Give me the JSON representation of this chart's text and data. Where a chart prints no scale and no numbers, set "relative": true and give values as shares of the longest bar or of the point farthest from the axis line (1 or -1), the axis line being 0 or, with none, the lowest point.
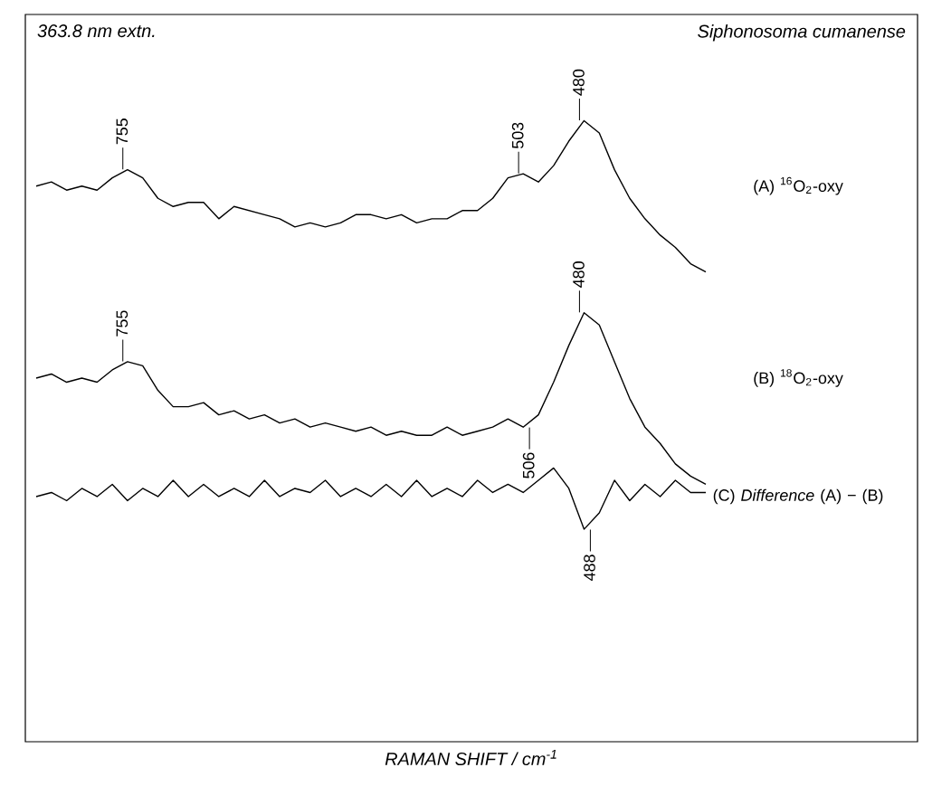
{
  "chart_data": {
    "type": "line",
    "relative": true,
    "categories": [
      null,
      null,
      null,
      null,
      null,
      null,
      null,
      null,
      null,
      null,
      null,
      null,
      null,
      null,
      null,
      null,
      null,
      null,
      null,
      null,
      null,
      null,
      null,
      null,
      null,
      null,
      null,
      null,
      null,
      null,
      null,
      null,
      null,
      null,
      null,
      null,
      null,
      null,
      null,
      null,
      null,
      null,
      null,
      null,
      null
    ],
    "tick_labels": false,
    "series": [
      {
        "name": "(A) $^{16}$O$_{2}$-oxy",
        "color": "#000000",
        "values": [
          0.84,
          0.85,
          0.83,
          0.84,
          0.83,
          0.86,
          0.88,
          0.86,
          0.81,
          0.79,
          0.8,
          0.8,
          0.76,
          0.79,
          0.78,
          0.77,
          0.76,
          0.74,
          0.75,
          0.74,
          0.75,
          0.77,
          0.77,
          0.76,
          0.77,
          0.75,
          0.76,
          0.76,
          0.78,
          0.78,
          0.81,
          0.86,
          0.87,
          0.85,
          0.89,
          0.95,
          1.0,
          0.97,
          0.88,
          0.81,
          0.76,
          0.72,
          0.69,
          0.65,
          0.63
        ]
      },
      {
        "name": "(B) $^{18}$O$_{2}$-oxy",
        "color": "#000000",
        "values": [
          0.37,
          0.38,
          0.36,
          0.37,
          0.36,
          0.39,
          0.41,
          0.4,
          0.34,
          0.3,
          0.3,
          0.31,
          0.28,
          0.29,
          0.27,
          0.28,
          0.26,
          0.27,
          0.25,
          0.26,
          0.25,
          0.24,
          0.25,
          0.23,
          0.24,
          0.23,
          0.23,
          0.25,
          0.23,
          0.24,
          0.25,
          0.27,
          0.25,
          0.28,
          0.36,
          0.45,
          0.53,
          0.5,
          0.41,
          0.32,
          0.25,
          0.21,
          0.16,
          0.13,
          0.11
        ]
      },
      {
        "name": "(C) *Difference* (A) − (B)",
        "color": "#000000",
        "values": [
          0.08,
          0.09,
          0.07,
          0.1,
          0.08,
          0.11,
          0.07,
          0.1,
          0.08,
          0.12,
          0.08,
          0.11,
          0.08,
          0.1,
          0.08,
          0.12,
          0.08,
          0.1,
          0.09,
          0.12,
          0.08,
          0.1,
          0.08,
          0.11,
          0.08,
          0.12,
          0.08,
          0.1,
          0.08,
          0.12,
          0.09,
          0.11,
          0.09,
          0.12,
          0.15,
          0.1,
          0,
          0.04,
          0.12,
          0.07,
          0.11,
          0.08,
          0.12,
          0.09,
          0.09
        ]
      }
    ],
    "annotations": [
      "363.8 nm extn.",
      "Siphonosoma cumanense",
      "RAMAN SHIFT / cm$^{-1}$",
      "755",
      "503",
      "480",
      "755",
      "506",
      "480",
      "488"
    ]
  }
}
